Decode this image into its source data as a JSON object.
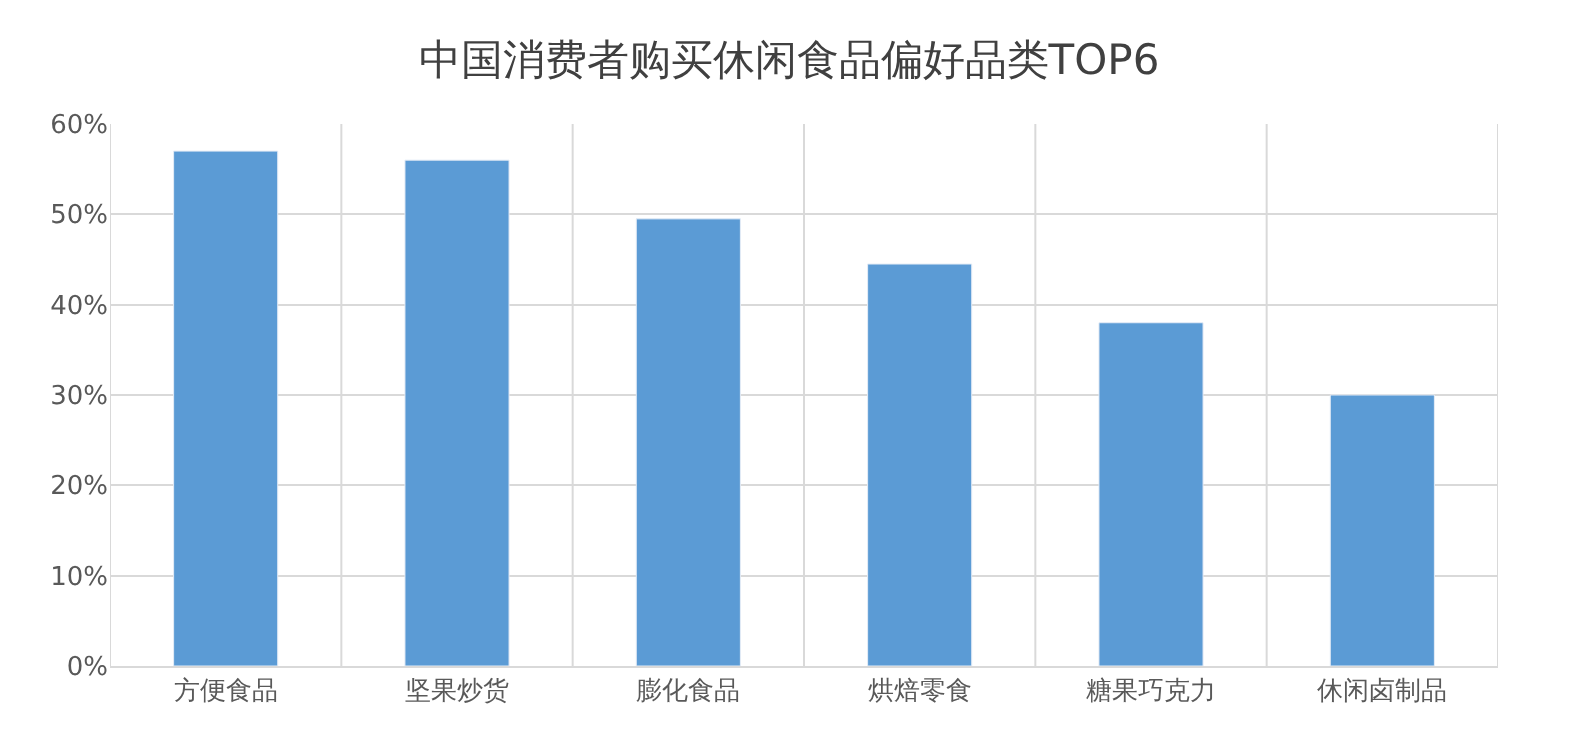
{
  "chart_data": {
    "type": "bar",
    "title": "中国消费者购买休闲食品偏好品类TOP6",
    "categories": [
      "方便食品",
      "坚果炒货",
      "膨化食品",
      "烘焙零食",
      "糖果巧克力",
      "休闲卤制品"
    ],
    "values": [
      57,
      56,
      49.5,
      44.5,
      38,
      30
    ],
    "color": "#5b9bd5",
    "ylim": [
      0,
      60
    ],
    "yticks": [
      {
        "value": 0,
        "label": "0%"
      },
      {
        "value": 10,
        "label": "10%"
      },
      {
        "value": 20,
        "label": "20%"
      },
      {
        "value": 30,
        "label": "30%"
      },
      {
        "value": 40,
        "label": "40%"
      },
      {
        "value": 50,
        "label": "50%"
      },
      {
        "value": 60,
        "label": "60%"
      }
    ],
    "grid": true,
    "legend": false
  }
}
